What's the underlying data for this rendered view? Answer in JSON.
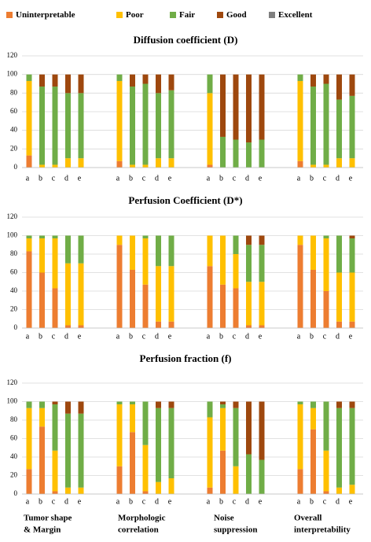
{
  "chart_data": [
    {
      "type": "bar",
      "stacked": true,
      "title": "Diffusion coefficient (D)",
      "grid": true,
      "categories": [
        "a",
        "b",
        "c",
        "d",
        "e",
        "a",
        "b",
        "c",
        "d",
        "e",
        "a",
        "b",
        "c",
        "d",
        "e",
        "a",
        "b",
        "c",
        "d",
        "e"
      ],
      "ylim": [
        0,
        120
      ],
      "yticks": [
        0,
        20,
        40,
        60,
        80,
        100,
        120
      ],
      "series": [
        {
          "name": "Uninterpretable",
          "color": "#ed7d31",
          "values": [
            13,
            0,
            0,
            0,
            0,
            7,
            0,
            0,
            0,
            0,
            3,
            0,
            0,
            0,
            0,
            7,
            0,
            0,
            0,
            0
          ]
        },
        {
          "name": "Poor",
          "color": "#ffc000",
          "values": [
            80,
            3,
            3,
            10,
            10,
            86,
            3,
            3,
            10,
            10,
            77,
            0,
            0,
            0,
            0,
            86,
            3,
            3,
            10,
            10
          ]
        },
        {
          "name": "Fair",
          "color": "#70ad47",
          "values": [
            7,
            84,
            84,
            70,
            70,
            7,
            84,
            87,
            70,
            73,
            20,
            33,
            30,
            27,
            30,
            7,
            84,
            87,
            63,
            67
          ]
        },
        {
          "name": "Good",
          "color": "#9e480e",
          "values": [
            0,
            13,
            13,
            20,
            20,
            0,
            13,
            10,
            20,
            17,
            0,
            67,
            70,
            73,
            70,
            0,
            13,
            10,
            27,
            23
          ]
        },
        {
          "name": "Excellent",
          "color": "#7f7f7f",
          "values": [
            0,
            0,
            0,
            0,
            0,
            0,
            0,
            0,
            0,
            0,
            0,
            0,
            0,
            0,
            0,
            0,
            0,
            0,
            0,
            0
          ]
        }
      ]
    },
    {
      "type": "bar",
      "stacked": true,
      "title": "Perfusion Coefficient (D*)",
      "grid": true,
      "categories": [
        "a",
        "b",
        "c",
        "d",
        "e",
        "a",
        "b",
        "c",
        "d",
        "e",
        "a",
        "b",
        "c",
        "d",
        "e",
        "a",
        "b",
        "c",
        "d",
        "e"
      ],
      "ylim": [
        0,
        120
      ],
      "yticks": [
        0,
        20,
        40,
        60,
        80,
        100,
        120
      ],
      "series": [
        {
          "name": "Uninterpretable",
          "color": "#ed7d31",
          "values": [
            83,
            60,
            43,
            3,
            3,
            90,
            63,
            47,
            7,
            7,
            67,
            47,
            43,
            3,
            3,
            90,
            63,
            40,
            7,
            7
          ]
        },
        {
          "name": "Poor",
          "color": "#ffc000",
          "values": [
            14,
            37,
            54,
            67,
            67,
            10,
            37,
            50,
            60,
            60,
            33,
            53,
            37,
            47,
            47,
            10,
            37,
            57,
            53,
            53
          ]
        },
        {
          "name": "Fair",
          "color": "#70ad47",
          "values": [
            3,
            3,
            3,
            30,
            30,
            0,
            0,
            3,
            33,
            33,
            0,
            0,
            20,
            40,
            40,
            0,
            0,
            3,
            40,
            37
          ]
        },
        {
          "name": "Good",
          "color": "#9e480e",
          "values": [
            0,
            0,
            0,
            0,
            0,
            0,
            0,
            0,
            0,
            0,
            0,
            0,
            0,
            10,
            10,
            0,
            0,
            0,
            0,
            3
          ]
        },
        {
          "name": "Excellent",
          "color": "#7f7f7f",
          "values": [
            0,
            0,
            0,
            0,
            0,
            0,
            0,
            0,
            0,
            0,
            0,
            0,
            0,
            0,
            0,
            0,
            0,
            0,
            0,
            0
          ]
        }
      ]
    },
    {
      "type": "bar",
      "stacked": true,
      "title": "Perfusion fraction (f)",
      "grid": true,
      "categories": [
        "a",
        "b",
        "c",
        "d",
        "e",
        "a",
        "b",
        "c",
        "d",
        "e",
        "a",
        "b",
        "c",
        "d",
        "e",
        "a",
        "b",
        "c",
        "d",
        "e"
      ],
      "ylim": [
        0,
        120
      ],
      "yticks": [
        0,
        20,
        40,
        60,
        80,
        100,
        120
      ],
      "series": [
        {
          "name": "Uninterpretable",
          "color": "#ed7d31",
          "values": [
            27,
            73,
            3,
            0,
            0,
            30,
            67,
            3,
            0,
            0,
            7,
            47,
            0,
            0,
            0,
            27,
            70,
            3,
            0,
            0
          ]
        },
        {
          "name": "Poor",
          "color": "#ffc000",
          "values": [
            66,
            20,
            44,
            7,
            7,
            67,
            30,
            50,
            13,
            17,
            76,
            46,
            30,
            0,
            0,
            70,
            23,
            44,
            7,
            10
          ]
        },
        {
          "name": "Fair",
          "color": "#70ad47",
          "values": [
            7,
            7,
            50,
            80,
            80,
            3,
            3,
            47,
            80,
            76,
            17,
            4,
            63,
            43,
            37,
            3,
            7,
            53,
            86,
            83
          ]
        },
        {
          "name": "Good",
          "color": "#9e480e",
          "values": [
            0,
            0,
            3,
            13,
            13,
            0,
            0,
            0,
            7,
            7,
            0,
            3,
            7,
            57,
            63,
            0,
            0,
            0,
            7,
            7
          ]
        },
        {
          "name": "Excellent",
          "color": "#7f7f7f",
          "values": [
            0,
            0,
            0,
            0,
            0,
            0,
            0,
            0,
            0,
            0,
            0,
            0,
            0,
            0,
            0,
            0,
            0,
            0,
            0,
            0
          ]
        }
      ]
    }
  ],
  "group_labels": [
    [
      "Tumor shape",
      "& Margin"
    ],
    [
      "Morphologic",
      "correlation"
    ],
    [
      "Noise",
      "suppression"
    ],
    [
      "Overall",
      "interpretability"
    ]
  ]
}
